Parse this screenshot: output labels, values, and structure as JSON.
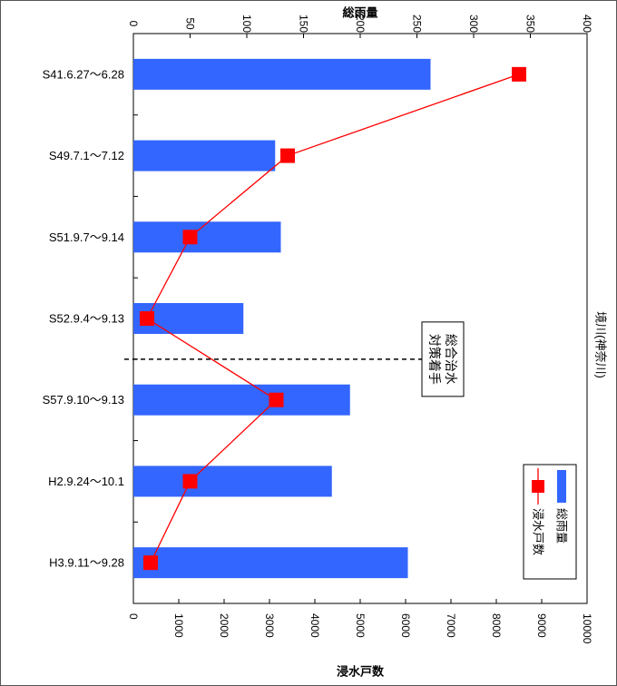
{
  "chart_data": {
    "type": "bar",
    "title": "",
    "side_label": "境川(神奈川)",
    "categories": [
      "S41.6.27～6.28",
      "S49.7.1～7.12",
      "S51.9.7～9.14",
      "S52.9.4～9.13",
      "S57.9.10～9.13",
      "H2.9.24～10.1",
      "H3.9.11～9.28"
    ],
    "series": [
      {
        "name": "総雨量",
        "kind": "bar",
        "axis": "top",
        "color": "#3366ff",
        "values": [
          262,
          125,
          130,
          97,
          191,
          175,
          242
        ]
      },
      {
        "name": "浸水戸数",
        "kind": "line",
        "axis": "bottom",
        "color": "#ff0000",
        "values": [
          8500,
          3400,
          1250,
          300,
          3150,
          1250,
          380
        ]
      }
    ],
    "axis_top": {
      "label": "総雨量",
      "range": [
        0,
        400
      ],
      "ticks": [
        "0",
        "50",
        "100",
        "150",
        "200",
        "250",
        "300",
        "350",
        "400"
      ]
    },
    "axis_bottom": {
      "label": "浸水戸数",
      "range": [
        0,
        10000
      ],
      "ticks": [
        "0",
        "1000",
        "2000",
        "3000",
        "4000",
        "5000",
        "6000",
        "7000",
        "8000",
        "9000",
        "10000"
      ]
    },
    "annotation": {
      "lines": [
        "総合治水",
        "対策着手"
      ],
      "between": [
        3,
        4
      ]
    },
    "legend": {
      "position": "bottom-right"
    },
    "grid": false
  }
}
